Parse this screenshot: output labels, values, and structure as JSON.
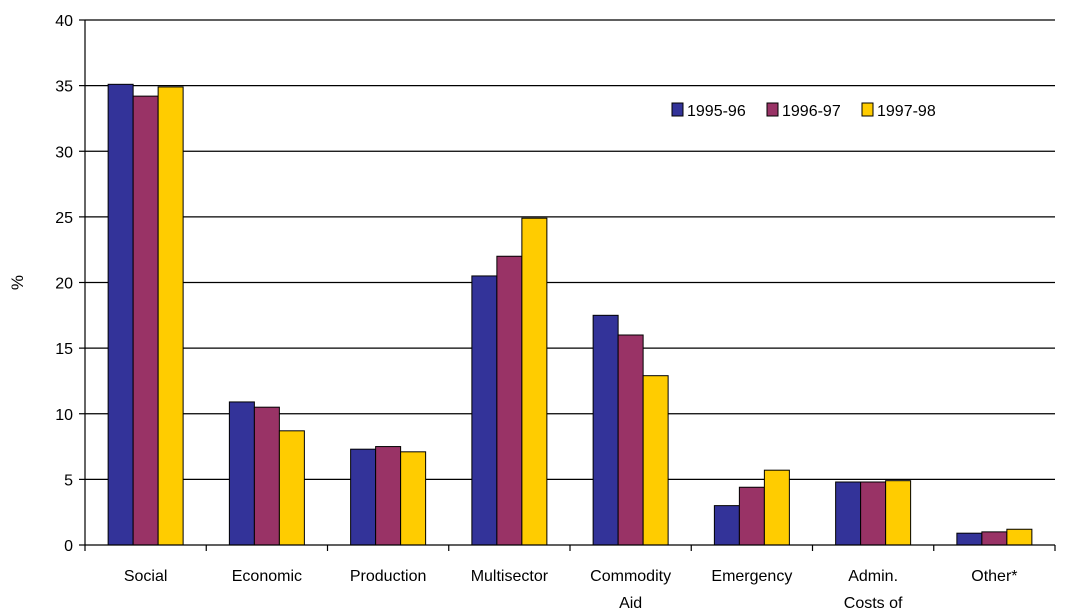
{
  "chart_data": {
    "type": "bar",
    "ylabel": "%",
    "xlabel": "",
    "ylim": [
      0,
      40
    ],
    "yticks": [
      0,
      5,
      10,
      15,
      20,
      25,
      30,
      35,
      40
    ],
    "grid": true,
    "legend_position": "top-right",
    "categories": [
      [
        "Social"
      ],
      [
        "Economic"
      ],
      [
        "Production"
      ],
      [
        "Multisector"
      ],
      [
        "Commodity",
        "Aid"
      ],
      [
        "Emergency"
      ],
      [
        "Admin.",
        "Costs of"
      ],
      [
        "Other*"
      ]
    ],
    "series": [
      {
        "name": "1995-96",
        "color": "#333399",
        "values": [
          35.1,
          10.9,
          7.3,
          20.5,
          17.5,
          3.0,
          4.8,
          0.9
        ]
      },
      {
        "name": "1996-97",
        "color": "#993366",
        "values": [
          34.2,
          10.5,
          7.5,
          22.0,
          16.0,
          4.4,
          4.8,
          1.0
        ]
      },
      {
        "name": "1997-98",
        "color": "#ffcc00",
        "values": [
          34.9,
          8.7,
          7.1,
          24.9,
          12.9,
          5.7,
          4.9,
          1.2
        ]
      }
    ]
  }
}
